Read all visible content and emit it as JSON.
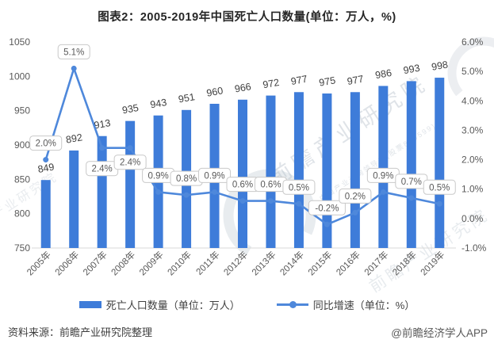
{
  "title": "图表2：2005-2019年中国死亡人口数量(单位：万人，%)",
  "chart_data": {
    "type": "bar+line combo",
    "categories": [
      "2005年",
      "2006年",
      "2007年",
      "2008年",
      "2009年",
      "2010年",
      "2011年",
      "2012年",
      "2013年",
      "2014年",
      "2015年",
      "2016年",
      "2017年",
      "2018年",
      "2019年"
    ],
    "series": [
      {
        "name": "死亡人口数量（单位：万人）",
        "type": "bar",
        "axis": "left",
        "values": [
          849,
          892,
          913,
          935,
          943,
          951,
          960,
          966,
          972,
          977,
          975,
          977,
          986,
          993,
          998
        ],
        "labels": [
          "849",
          "892",
          "913",
          "935",
          "943",
          "951",
          "960",
          "966",
          "972",
          "977",
          "975",
          "977",
          "986",
          "993",
          "998"
        ]
      },
      {
        "name": "同比增速（单位：%）",
        "type": "line",
        "axis": "right",
        "values": [
          2.0,
          5.1,
          2.4,
          2.4,
          0.9,
          0.8,
          0.9,
          0.6,
          0.6,
          0.5,
          -0.2,
          0.2,
          0.9,
          0.7,
          0.5
        ],
        "labels": [
          "2.0%",
          "5.1%",
          "2.4%",
          "2.4%",
          "0.9%",
          "0.8%",
          "0.9%",
          "0.6%",
          "0.6%",
          "0.5%",
          "-0.2%",
          "0.2%",
          "0.9%",
          "0.7%",
          "0.5%"
        ]
      }
    ],
    "left_axis": {
      "min": 750,
      "max": 1050,
      "ticks": [
        "1050",
        "1000",
        "950",
        "900",
        "850",
        "800",
        "750"
      ]
    },
    "right_axis": {
      "min": -1.0,
      "max": 6.0,
      "ticks": [
        "6.0%",
        "5.0%",
        "4.0%",
        "3.0%",
        "2.0%",
        "1.0%",
        "0.0%",
        "-1.0%"
      ]
    },
    "grid": "off",
    "legend_position": "bottom"
  },
  "legend": {
    "bar_label": "死亡人口数量（单位：万人）",
    "line_label": "同比增速（单位：%）"
  },
  "footer": {
    "source": "资料来源：前瞻产业研究院整理",
    "credit": "@前瞻经济学人APP"
  },
  "watermark": {
    "text": "前瞻产业研究院",
    "subtext": "中国产业咨询领导者(股票839599)"
  },
  "colors": {
    "bar": "#3E7CD9",
    "line": "#4E88DB",
    "axis_text": "#595959",
    "bar_label_text": "#3D3D3D",
    "callout_border": "#C9C9C9",
    "callout_text": "#595959",
    "baseline": "#D8D8D8",
    "title_text": "#262626",
    "watermark": "#B9C3CD"
  }
}
